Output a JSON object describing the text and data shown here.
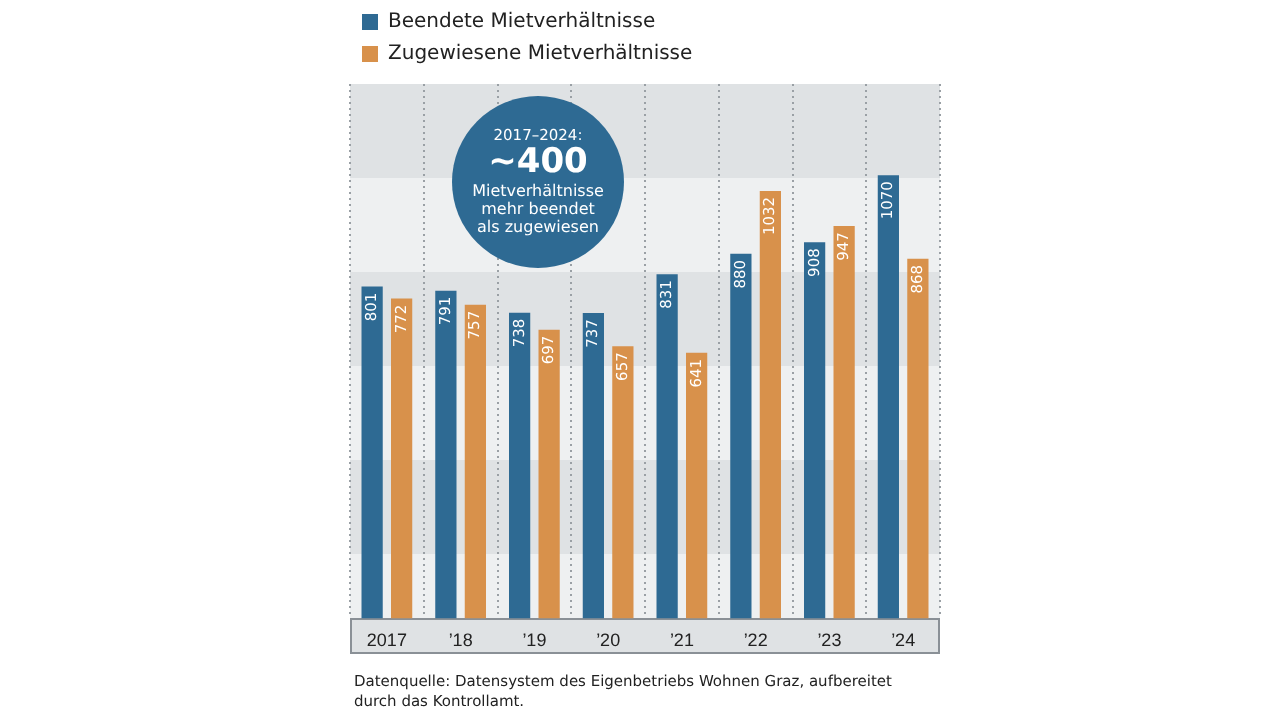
{
  "chart_data": {
    "type": "bar",
    "categories": [
      "2017",
      "’18",
      "’19",
      "’20",
      "’21",
      "’22",
      "’23",
      "’24"
    ],
    "series": [
      {
        "name": "Beendete Mietverhältnisse",
        "color": "#2e6a93",
        "values": [
          801,
          791,
          738,
          737,
          831,
          880,
          908,
          1070
        ]
      },
      {
        "name": "Zugewiesene Mietverhältnisse",
        "color": "#d8914b",
        "values": [
          772,
          757,
          697,
          657,
          641,
          1032,
          947,
          868
        ]
      }
    ],
    "ylim": [
      0,
      1290
    ],
    "tick_labels": "x",
    "grid": "x",
    "legend": "top left",
    "data_labels": true,
    "annotations": [
      "2017–2024:",
      "~400",
      "Mietverhältnisse mehr beendet als zugewiesen",
      "Datenquelle: Datensystem des Eigenbetriebs Wohnen Graz, aufbereitet durch das Kontrollamt."
    ]
  }
}
